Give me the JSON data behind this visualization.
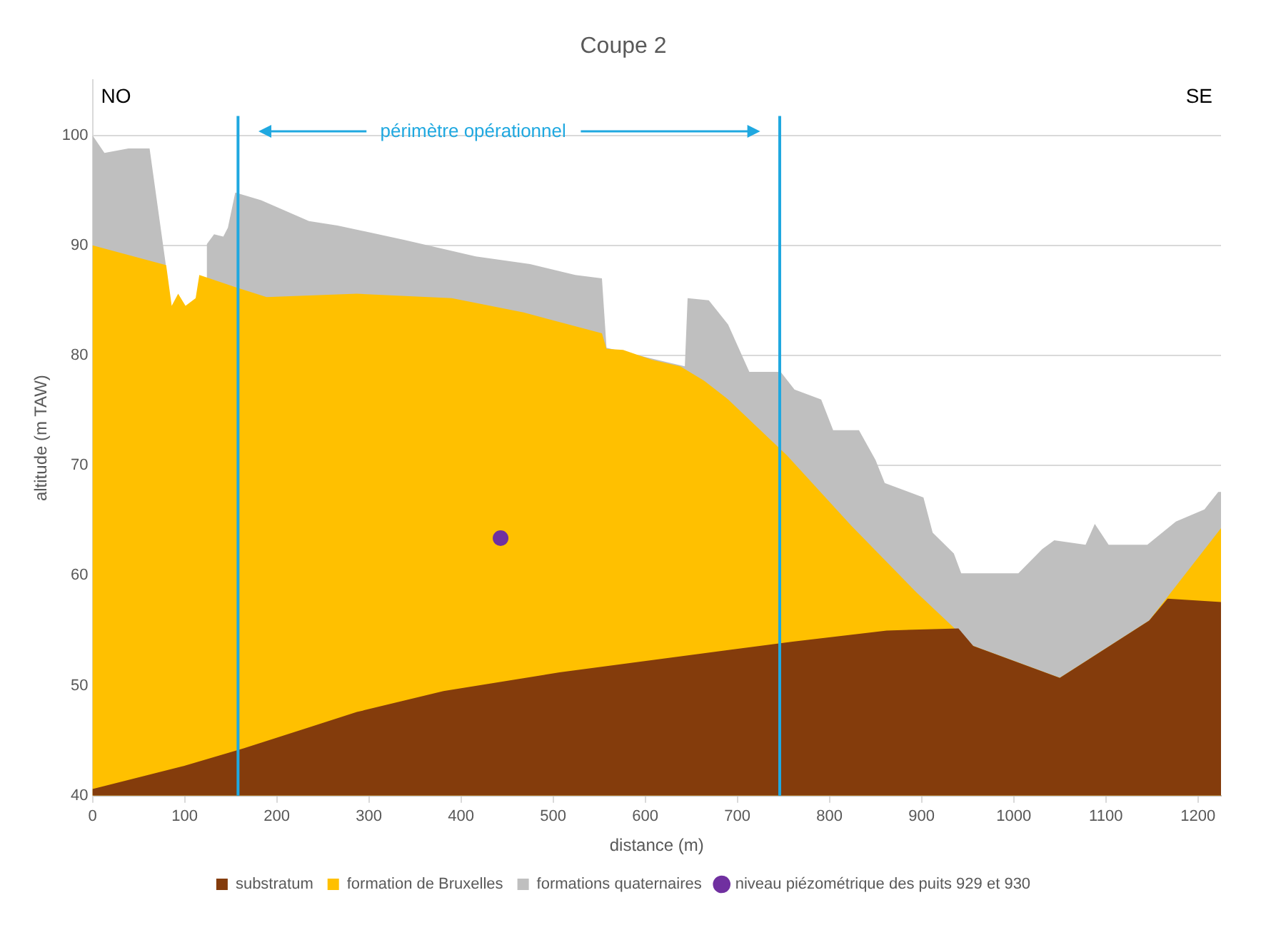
{
  "chart_data": {
    "type": "area",
    "title": "Coupe 2",
    "xlabel": "distance (m)",
    "ylabel": "altitude (m TAW)",
    "xlim": [
      0,
      1225
    ],
    "xticks": [
      0,
      100,
      200,
      300,
      400,
      500,
      600,
      700,
      800,
      900,
      1000,
      1100,
      1200
    ],
    "ylim": [
      40,
      105
    ],
    "yticks": [
      40,
      50,
      60,
      70,
      80,
      90,
      100
    ],
    "grid": "y",
    "legend": "bottom",
    "series": [
      {
        "name": "substratum",
        "color": "#843c0c",
        "x": [
          0,
          99,
          164,
          287,
          381,
          507,
          760,
          862,
          940,
          956,
          1050,
          1147,
          1167,
          1225
        ],
        "values": [
          40.6,
          42.7,
          44.3,
          47.6,
          49.5,
          51.2,
          54,
          55,
          55.2,
          53.6,
          50.7,
          55.9,
          57.9,
          57.6
        ]
      },
      {
        "name": "formation de Bruxelles",
        "color": "#ffc000",
        "x": [
          0,
          80,
          86,
          93,
          101,
          112,
          116,
          155,
          189,
          287,
          390,
          468,
          553,
          558,
          576,
          607,
          638,
          664,
          690,
          754,
          824,
          894,
          956,
          1050,
          1147,
          1171,
          1225
        ],
        "values": [
          90,
          88.2,
          84.5,
          85.6,
          84.5,
          85.2,
          87.3,
          86.2,
          85.3,
          85.6,
          85.2,
          83.9,
          82,
          80.6,
          80.5,
          79.6,
          79,
          77.7,
          76,
          70.9,
          64.5,
          58.5,
          53.6,
          50.7,
          55.9,
          58.5,
          64.3
        ]
      },
      {
        "name": "formations quaternaires",
        "color": "#bfbfbf",
        "x": [
          0,
          13,
          39,
          62,
          80,
          86,
          93,
          101,
          112,
          124,
          132,
          142,
          147,
          155,
          183,
          235,
          266,
          338,
          416,
          475,
          524,
          553,
          558,
          643,
          646,
          669,
          690,
          713,
          747,
          762,
          791,
          804,
          832,
          850,
          860,
          902,
          912,
          935,
          943,
          1005,
          1018,
          1031,
          1044,
          1078,
          1088,
          1103,
          1145,
          1176,
          1207,
          1222,
          1225
        ],
        "values": [
          100,
          98.4,
          98.8,
          98.8,
          88,
          null,
          null,
          null,
          null,
          90.1,
          91,
          90.8,
          91.6,
          94.8,
          94.1,
          92.2,
          91.8,
          90.5,
          89,
          88.3,
          87.3,
          87,
          80.7,
          79,
          85.2,
          85,
          82.8,
          78.5,
          78.5,
          76.9,
          76,
          73.2,
          73.2,
          70.5,
          68.4,
          67.1,
          63.9,
          62,
          60.2,
          60.2,
          61.3,
          62.4,
          63.2,
          62.8,
          64.7,
          62.8,
          62.8,
          64.9,
          66,
          67.6,
          67.6
        ]
      },
      {
        "name": "niveau piézométrique des puits 929 et 930",
        "type": "scatter",
        "color": "#7030a0",
        "marker": "circle",
        "x": [
          443
        ],
        "values": [
          63.4
        ]
      }
    ],
    "ref_lines": [
      {
        "axis": "x",
        "value": 158,
        "color": "#1fa8e0"
      },
      {
        "axis": "x",
        "value": 746,
        "color": "#1fa8e0"
      }
    ],
    "annotations": [
      "périmètre opérationnel",
      "NO",
      "SE"
    ]
  }
}
